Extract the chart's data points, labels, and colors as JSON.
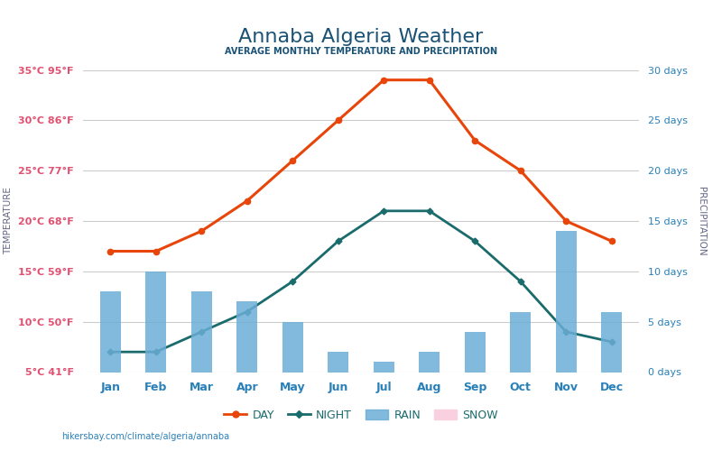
{
  "title": "Annaba Algeria Weather",
  "subtitle": "AVERAGE MONTHLY TEMPERATURE AND PRECIPITATION",
  "months": [
    "Jan",
    "Feb",
    "Mar",
    "Apr",
    "May",
    "Jun",
    "Jul",
    "Aug",
    "Sep",
    "Oct",
    "Nov",
    "Dec"
  ],
  "day_temps": [
    17,
    17,
    19,
    22,
    26,
    30,
    34,
    34,
    28,
    25,
    20,
    18
  ],
  "night_temps": [
    7,
    7,
    9,
    11,
    14,
    18,
    21,
    21,
    18,
    14,
    9,
    8
  ],
  "rain_days": [
    8,
    10,
    8,
    7,
    5,
    2,
    1,
    2,
    4,
    6,
    14,
    6
  ],
  "snow_days": [
    0,
    0,
    0,
    0,
    0,
    0,
    0,
    0,
    0,
    0,
    0,
    0
  ],
  "temp_left_labels": [
    "5°C 41°F",
    "10°C 50°F",
    "15°C 59°F",
    "20°C 68°F",
    "25°C 77°F",
    "30°C 86°F",
    "35°C 95°F"
  ],
  "temp_left_values": [
    5,
    10,
    15,
    20,
    25,
    30,
    35
  ],
  "precip_right_labels": [
    "0 days",
    "5 days",
    "10 days",
    "15 days",
    "20 days",
    "25 days",
    "30 days"
  ],
  "precip_right_values": [
    0,
    5,
    10,
    15,
    20,
    25,
    30
  ],
  "day_color": "#e8450a",
  "night_color": "#1a6b6b",
  "rain_color": "#6baed6",
  "snow_color": "#f9d0e0",
  "title_color": "#1a5276",
  "subtitle_color": "#1a5276",
  "left_label_color": "#e05070",
  "right_label_color": "#2980b9",
  "month_label_color": "#2980b9",
  "ylabel_left_color": "#666688",
  "ylabel_right_color": "#666688",
  "temp_min": 5,
  "temp_max": 35,
  "precip_min": 0,
  "precip_max": 30,
  "url_text": "hikersbay.com/climate/algeria/annaba",
  "background_color": "#ffffff",
  "grid_color": "#cccccc",
  "bar_width": 0.45,
  "bar_alpha": 0.85
}
